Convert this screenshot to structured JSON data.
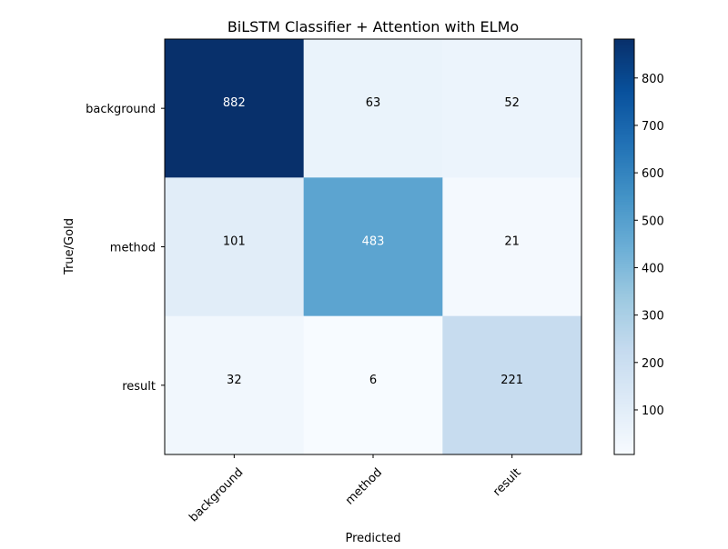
{
  "chart_data": {
    "type": "heatmap",
    "title": "BiLSTM Classifier + Attention with ELMo",
    "xlabel": "Predicted",
    "ylabel": "True/Gold",
    "x_categories": [
      "background",
      "method",
      "result"
    ],
    "y_categories": [
      "background",
      "method",
      "result"
    ],
    "values": [
      [
        882,
        63,
        52
      ],
      [
        101,
        483,
        21
      ],
      [
        32,
        6,
        221
      ]
    ],
    "colormap": "Blues",
    "color_range": [
      6,
      882
    ],
    "colorbar_ticks": [
      100,
      200,
      300,
      400,
      500,
      600,
      700,
      800
    ],
    "grid": false
  }
}
